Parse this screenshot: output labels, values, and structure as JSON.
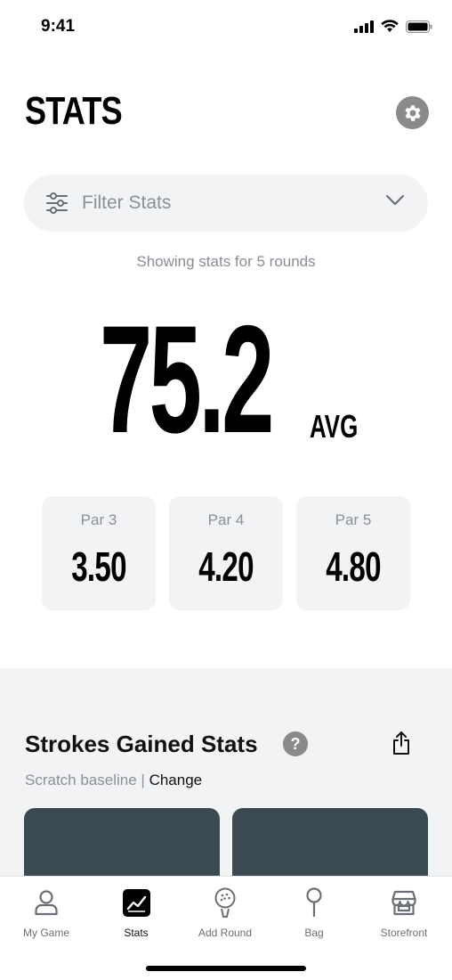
{
  "status": {
    "time": "9:41"
  },
  "header": {
    "title": "STATS"
  },
  "filter": {
    "label": "Filter Stats"
  },
  "summary": {
    "rounds_text": "Showing stats for 5 rounds",
    "avg_value": "75.2",
    "avg_unit": "AVG"
  },
  "par_stats": [
    {
      "label": "Par 3",
      "value": "3.50"
    },
    {
      "label": "Par 4",
      "value": "4.20"
    },
    {
      "label": "Par 5",
      "value": "4.80"
    }
  ],
  "strokes_gained": {
    "title": "Strokes Gained Stats",
    "help": "?",
    "baseline": "Scratch baseline",
    "separator": "|",
    "change": "Change"
  },
  "tabs": [
    {
      "label": "My Game",
      "icon": "person-icon"
    },
    {
      "label": "Stats",
      "icon": "chart-icon"
    },
    {
      "label": "Add Round",
      "icon": "golf-ball-icon"
    },
    {
      "label": "Bag",
      "icon": "club-icon"
    },
    {
      "label": "Storefront",
      "icon": "store-icon"
    }
  ],
  "colors": {
    "card": "#3b4a51",
    "surface": "#f2f3f5",
    "muted": "#8b8f96"
  }
}
